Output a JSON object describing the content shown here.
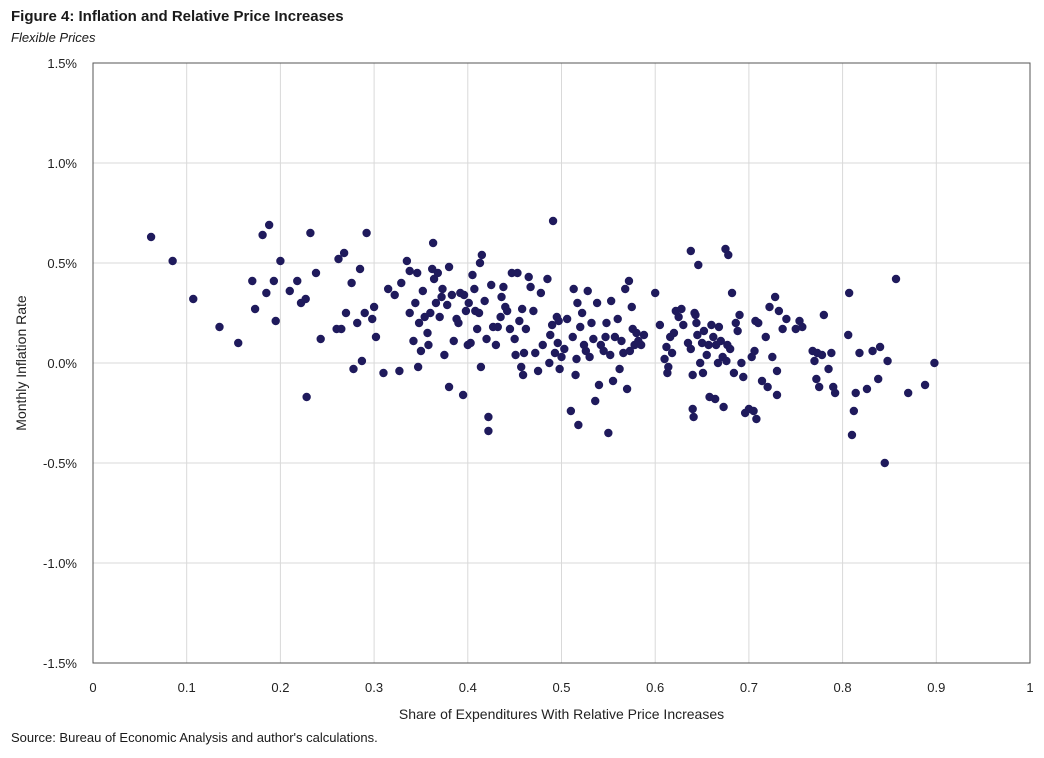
{
  "title": "Figure 4: Inflation and Relative Price Increases",
  "subtitle": "Flexible Prices",
  "source": "Source: Bureau of Economic Analysis and author's calculations.",
  "chart_data": {
    "type": "scatter",
    "xlabel": "Share of Expenditures With Relative Price Increases",
    "ylabel": "Monthly Inflation Rate",
    "xlim": [
      0,
      1
    ],
    "ylim": [
      -1.5,
      1.5
    ],
    "x_ticks": [
      0,
      0.1,
      0.2,
      0.3,
      0.4,
      0.5,
      0.6,
      0.7,
      0.8,
      0.9,
      1
    ],
    "x_tick_labels": [
      "0",
      "0.1",
      "0.2",
      "0.3",
      "0.4",
      "0.5",
      "0.6",
      "0.7",
      "0.8",
      "0.9",
      "1"
    ],
    "y_ticks": [
      1.5,
      1.0,
      0.5,
      0.0,
      -0.5,
      -1.0,
      -1.5
    ],
    "y_tick_labels": [
      "1.5%",
      "1.0%",
      "0.5%",
      "0.0%",
      "-0.5%",
      "-1.0%",
      "-1.5%"
    ],
    "grid": true,
    "marker_color": "#1f1a5c",
    "points": [
      [
        0.062,
        0.63
      ],
      [
        0.085,
        0.51
      ],
      [
        0.107,
        0.32
      ],
      [
        0.135,
        0.18
      ],
      [
        0.155,
        0.1
      ],
      [
        0.17,
        0.41
      ],
      [
        0.173,
        0.27
      ],
      [
        0.181,
        0.64
      ],
      [
        0.185,
        0.35
      ],
      [
        0.188,
        0.69
      ],
      [
        0.193,
        0.41
      ],
      [
        0.195,
        0.21
      ],
      [
        0.2,
        0.51
      ],
      [
        0.21,
        0.36
      ],
      [
        0.218,
        0.41
      ],
      [
        0.222,
        0.3
      ],
      [
        0.227,
        0.32
      ],
      [
        0.228,
        -0.17
      ],
      [
        0.232,
        0.65
      ],
      [
        0.238,
        0.45
      ],
      [
        0.243,
        0.12
      ],
      [
        0.26,
        0.17
      ],
      [
        0.262,
        0.52
      ],
      [
        0.265,
        0.17
      ],
      [
        0.268,
        0.55
      ],
      [
        0.27,
        0.25
      ],
      [
        0.276,
        0.4
      ],
      [
        0.278,
        -0.03
      ],
      [
        0.282,
        0.2
      ],
      [
        0.285,
        0.47
      ],
      [
        0.287,
        0.01
      ],
      [
        0.29,
        0.25
      ],
      [
        0.292,
        0.65
      ],
      [
        0.298,
        0.22
      ],
      [
        0.3,
        0.28
      ],
      [
        0.302,
        0.13
      ],
      [
        0.31,
        -0.05
      ],
      [
        0.315,
        0.37
      ],
      [
        0.322,
        0.34
      ],
      [
        0.327,
        -0.04
      ],
      [
        0.329,
        0.4
      ],
      [
        0.335,
        0.51
      ],
      [
        0.338,
        0.46
      ],
      [
        0.338,
        0.25
      ],
      [
        0.342,
        0.11
      ],
      [
        0.344,
        0.3
      ],
      [
        0.346,
        0.45
      ],
      [
        0.347,
        -0.02
      ],
      [
        0.348,
        0.2
      ],
      [
        0.35,
        0.06
      ],
      [
        0.352,
        0.36
      ],
      [
        0.354,
        0.23
      ],
      [
        0.357,
        0.15
      ],
      [
        0.358,
        0.09
      ],
      [
        0.36,
        0.25
      ],
      [
        0.362,
        0.47
      ],
      [
        0.363,
        0.6
      ],
      [
        0.364,
        0.42
      ],
      [
        0.366,
        0.3
      ],
      [
        0.368,
        0.45
      ],
      [
        0.37,
        0.23
      ],
      [
        0.372,
        0.33
      ],
      [
        0.373,
        0.37
      ],
      [
        0.375,
        0.04
      ],
      [
        0.378,
        0.29
      ],
      [
        0.38,
        -0.12
      ],
      [
        0.38,
        0.48
      ],
      [
        0.383,
        0.34
      ],
      [
        0.385,
        0.11
      ],
      [
        0.388,
        0.22
      ],
      [
        0.39,
        0.2
      ],
      [
        0.392,
        0.35
      ],
      [
        0.395,
        -0.16
      ],
      [
        0.396,
        0.34
      ],
      [
        0.398,
        0.26
      ],
      [
        0.4,
        0.09
      ],
      [
        0.401,
        0.3
      ],
      [
        0.403,
        0.1
      ],
      [
        0.405,
        0.44
      ],
      [
        0.407,
        0.37
      ],
      [
        0.408,
        0.26
      ],
      [
        0.41,
        0.17
      ],
      [
        0.412,
        0.25
      ],
      [
        0.413,
        0.5
      ],
      [
        0.414,
        -0.02
      ],
      [
        0.415,
        0.54
      ],
      [
        0.418,
        0.31
      ],
      [
        0.42,
        0.12
      ],
      [
        0.422,
        -0.27
      ],
      [
        0.422,
        -0.34
      ],
      [
        0.425,
        0.39
      ],
      [
        0.427,
        0.18
      ],
      [
        0.43,
        0.09
      ],
      [
        0.432,
        0.18
      ],
      [
        0.435,
        0.23
      ],
      [
        0.436,
        0.33
      ],
      [
        0.438,
        0.38
      ],
      [
        0.44,
        0.28
      ],
      [
        0.442,
        0.26
      ],
      [
        0.445,
        0.17
      ],
      [
        0.447,
        0.45
      ],
      [
        0.45,
        0.12
      ],
      [
        0.451,
        0.04
      ],
      [
        0.453,
        0.45
      ],
      [
        0.455,
        0.21
      ],
      [
        0.457,
        -0.02
      ],
      [
        0.458,
        0.27
      ],
      [
        0.459,
        -0.06
      ],
      [
        0.46,
        0.05
      ],
      [
        0.462,
        0.17
      ],
      [
        0.465,
        0.43
      ],
      [
        0.467,
        0.38
      ],
      [
        0.47,
        0.26
      ],
      [
        0.472,
        0.05
      ],
      [
        0.475,
        -0.04
      ],
      [
        0.478,
        0.35
      ],
      [
        0.48,
        0.09
      ],
      [
        0.485,
        0.42
      ],
      [
        0.487,
        0.0
      ],
      [
        0.488,
        0.14
      ],
      [
        0.49,
        0.19
      ],
      [
        0.491,
        0.71
      ],
      [
        0.493,
        0.05
      ],
      [
        0.495,
        0.23
      ],
      [
        0.496,
        0.1
      ],
      [
        0.497,
        0.21
      ],
      [
        0.498,
        -0.03
      ],
      [
        0.5,
        0.03
      ],
      [
        0.503,
        0.07
      ],
      [
        0.506,
        0.22
      ],
      [
        0.51,
        -0.24
      ],
      [
        0.512,
        0.13
      ],
      [
        0.513,
        0.37
      ],
      [
        0.515,
        -0.06
      ],
      [
        0.516,
        0.02
      ],
      [
        0.517,
        0.3
      ],
      [
        0.518,
        -0.31
      ],
      [
        0.52,
        0.18
      ],
      [
        0.522,
        0.25
      ],
      [
        0.524,
        0.09
      ],
      [
        0.526,
        0.06
      ],
      [
        0.528,
        0.36
      ],
      [
        0.53,
        0.03
      ],
      [
        0.532,
        0.2
      ],
      [
        0.534,
        0.12
      ],
      [
        0.536,
        -0.19
      ],
      [
        0.538,
        0.3
      ],
      [
        0.54,
        -0.11
      ],
      [
        0.542,
        0.09
      ],
      [
        0.545,
        0.06
      ],
      [
        0.547,
        0.13
      ],
      [
        0.548,
        0.2
      ],
      [
        0.55,
        -0.35
      ],
      [
        0.552,
        0.04
      ],
      [
        0.553,
        0.31
      ],
      [
        0.555,
        -0.09
      ],
      [
        0.557,
        0.13
      ],
      [
        0.56,
        0.22
      ],
      [
        0.562,
        -0.03
      ],
      [
        0.564,
        0.11
      ],
      [
        0.566,
        0.05
      ],
      [
        0.568,
        0.37
      ],
      [
        0.57,
        -0.13
      ],
      [
        0.572,
        0.41
      ],
      [
        0.573,
        0.06
      ],
      [
        0.575,
        0.28
      ],
      [
        0.576,
        0.17
      ],
      [
        0.578,
        0.09
      ],
      [
        0.58,
        0.15
      ],
      [
        0.582,
        0.11
      ],
      [
        0.585,
        0.09
      ],
      [
        0.588,
        0.14
      ],
      [
        0.6,
        0.35
      ],
      [
        0.605,
        0.19
      ],
      [
        0.61,
        0.02
      ],
      [
        0.612,
        0.08
      ],
      [
        0.613,
        -0.05
      ],
      [
        0.614,
        -0.02
      ],
      [
        0.616,
        0.13
      ],
      [
        0.618,
        0.05
      ],
      [
        0.62,
        0.15
      ],
      [
        0.622,
        0.26
      ],
      [
        0.625,
        0.23
      ],
      [
        0.628,
        0.27
      ],
      [
        0.63,
        0.19
      ],
      [
        0.635,
        0.1
      ],
      [
        0.638,
        0.56
      ],
      [
        0.638,
        0.07
      ],
      [
        0.64,
        -0.06
      ],
      [
        0.64,
        -0.23
      ],
      [
        0.641,
        -0.27
      ],
      [
        0.642,
        0.25
      ],
      [
        0.643,
        0.24
      ],
      [
        0.644,
        0.2
      ],
      [
        0.645,
        0.14
      ],
      [
        0.646,
        0.49
      ],
      [
        0.648,
        0.0
      ],
      [
        0.65,
        0.1
      ],
      [
        0.651,
        -0.05
      ],
      [
        0.652,
        0.16
      ],
      [
        0.655,
        0.04
      ],
      [
        0.657,
        0.09
      ],
      [
        0.658,
        -0.17
      ],
      [
        0.66,
        0.19
      ],
      [
        0.662,
        0.13
      ],
      [
        0.664,
        -0.18
      ],
      [
        0.665,
        0.09
      ],
      [
        0.667,
        0.0
      ],
      [
        0.668,
        0.18
      ],
      [
        0.67,
        0.11
      ],
      [
        0.672,
        0.03
      ],
      [
        0.673,
        -0.22
      ],
      [
        0.675,
        0.57
      ],
      [
        0.676,
        0.01
      ],
      [
        0.677,
        0.09
      ],
      [
        0.678,
        0.54
      ],
      [
        0.68,
        0.07
      ],
      [
        0.682,
        0.35
      ],
      [
        0.684,
        -0.05
      ],
      [
        0.686,
        0.2
      ],
      [
        0.688,
        0.16
      ],
      [
        0.69,
        0.24
      ],
      [
        0.692,
        0.0
      ],
      [
        0.694,
        -0.07
      ],
      [
        0.696,
        -0.25
      ],
      [
        0.7,
        -0.23
      ],
      [
        0.703,
        0.03
      ],
      [
        0.705,
        -0.24
      ],
      [
        0.706,
        0.06
      ],
      [
        0.707,
        0.21
      ],
      [
        0.708,
        -0.28
      ],
      [
        0.71,
        0.2
      ],
      [
        0.714,
        -0.09
      ],
      [
        0.718,
        0.13
      ],
      [
        0.72,
        -0.12
      ],
      [
        0.722,
        0.28
      ],
      [
        0.725,
        0.03
      ],
      [
        0.728,
        0.33
      ],
      [
        0.73,
        -0.04
      ],
      [
        0.73,
        -0.16
      ],
      [
        0.732,
        0.26
      ],
      [
        0.736,
        0.17
      ],
      [
        0.74,
        0.22
      ],
      [
        0.75,
        0.17
      ],
      [
        0.754,
        0.21
      ],
      [
        0.757,
        0.18
      ],
      [
        0.768,
        0.06
      ],
      [
        0.77,
        0.01
      ],
      [
        0.772,
        -0.08
      ],
      [
        0.773,
        0.05
      ],
      [
        0.775,
        -0.12
      ],
      [
        0.778,
        0.04
      ],
      [
        0.78,
        0.24
      ],
      [
        0.785,
        -0.03
      ],
      [
        0.788,
        0.05
      ],
      [
        0.79,
        -0.12
      ],
      [
        0.792,
        -0.15
      ],
      [
        0.806,
        0.14
      ],
      [
        0.807,
        0.35
      ],
      [
        0.81,
        -0.36
      ],
      [
        0.812,
        -0.24
      ],
      [
        0.814,
        -0.15
      ],
      [
        0.818,
        0.05
      ],
      [
        0.826,
        -0.13
      ],
      [
        0.832,
        0.06
      ],
      [
        0.838,
        -0.08
      ],
      [
        0.84,
        0.08
      ],
      [
        0.845,
        -0.5
      ],
      [
        0.848,
        0.01
      ],
      [
        0.857,
        0.42
      ],
      [
        0.87,
        -0.15
      ],
      [
        0.888,
        -0.11
      ],
      [
        0.898,
        0.0
      ]
    ]
  }
}
